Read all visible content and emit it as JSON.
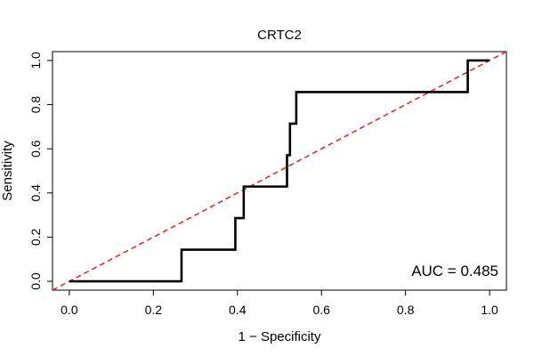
{
  "chart_data": {
    "type": "line",
    "title": "CRTC2",
    "xlabel": "1 − Specificity",
    "ylabel": "Sensitivity",
    "xlim": [
      -0.04,
      1.04
    ],
    "ylim": [
      -0.04,
      1.04
    ],
    "x_ticks": [
      0.0,
      0.2,
      0.4,
      0.6,
      0.8,
      1.0
    ],
    "y_ticks": [
      0.0,
      0.2,
      0.4,
      0.6,
      0.8,
      1.0
    ],
    "x_tick_labels": [
      "0.0",
      "0.2",
      "0.4",
      "0.6",
      "0.8",
      "1.0"
    ],
    "y_tick_labels": [
      "0.0",
      "0.2",
      "0.4",
      "0.6",
      "0.8",
      "1.0"
    ],
    "grid": false,
    "annotation": "AUC = 0.485",
    "series": [
      {
        "name": "ROC curve",
        "color": "#000000",
        "style": "solid",
        "x": [
          0.0,
          0.267,
          0.267,
          0.395,
          0.395,
          0.415,
          0.415,
          0.518,
          0.518,
          0.525,
          0.525,
          0.54,
          0.54,
          0.948,
          0.948,
          1.0
        ],
        "y": [
          0.0,
          0.0,
          0.143,
          0.143,
          0.286,
          0.286,
          0.429,
          0.429,
          0.571,
          0.571,
          0.714,
          0.714,
          0.857,
          0.857,
          1.0,
          1.0
        ]
      },
      {
        "name": "Reference diagonal",
        "color": "#e8201f",
        "style": "dashed",
        "x": [
          -0.04,
          1.04
        ],
        "y": [
          -0.04,
          1.04
        ]
      }
    ]
  }
}
